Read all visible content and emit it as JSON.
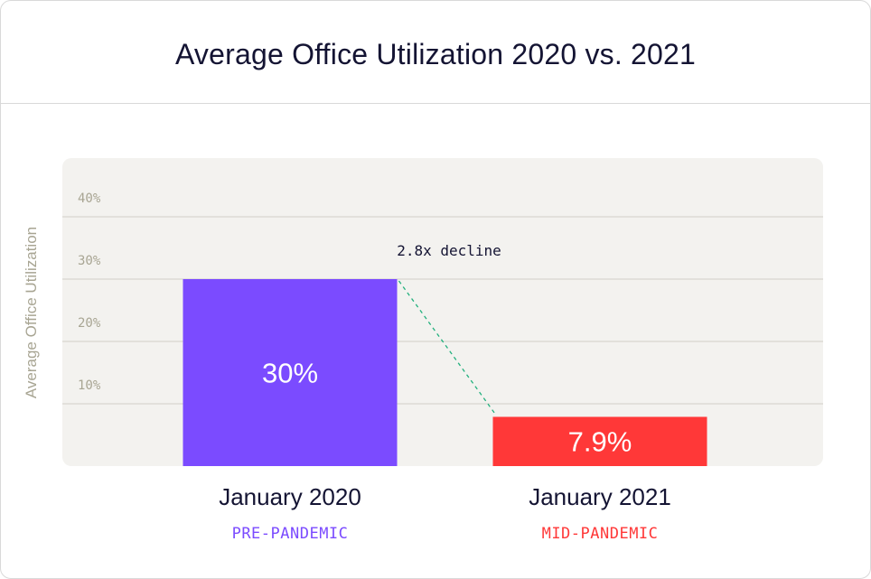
{
  "chart_data": {
    "type": "bar",
    "title": "Average Office Utilization 2020 vs. 2021",
    "ylabel": "Average Office Utilization",
    "xlabel": "",
    "ylim": [
      0,
      40
    ],
    "yticks": [
      10,
      20,
      30,
      40
    ],
    "ytick_labels": [
      "10%",
      "20%",
      "30%",
      "40%"
    ],
    "grid": true,
    "categories": [
      "January 2020",
      "January 2021"
    ],
    "sublabels": [
      "PRE-PANDEMIC",
      "MID-PANDEMIC"
    ],
    "values": [
      30,
      7.9
    ],
    "data_labels": [
      "30%",
      "7.9%"
    ],
    "colors": [
      "#7b4bff",
      "#ff3838"
    ],
    "annotation": "2.8x decline",
    "annotation_line_color": "#22b07d",
    "plot_background": "#f3f2ef"
  }
}
